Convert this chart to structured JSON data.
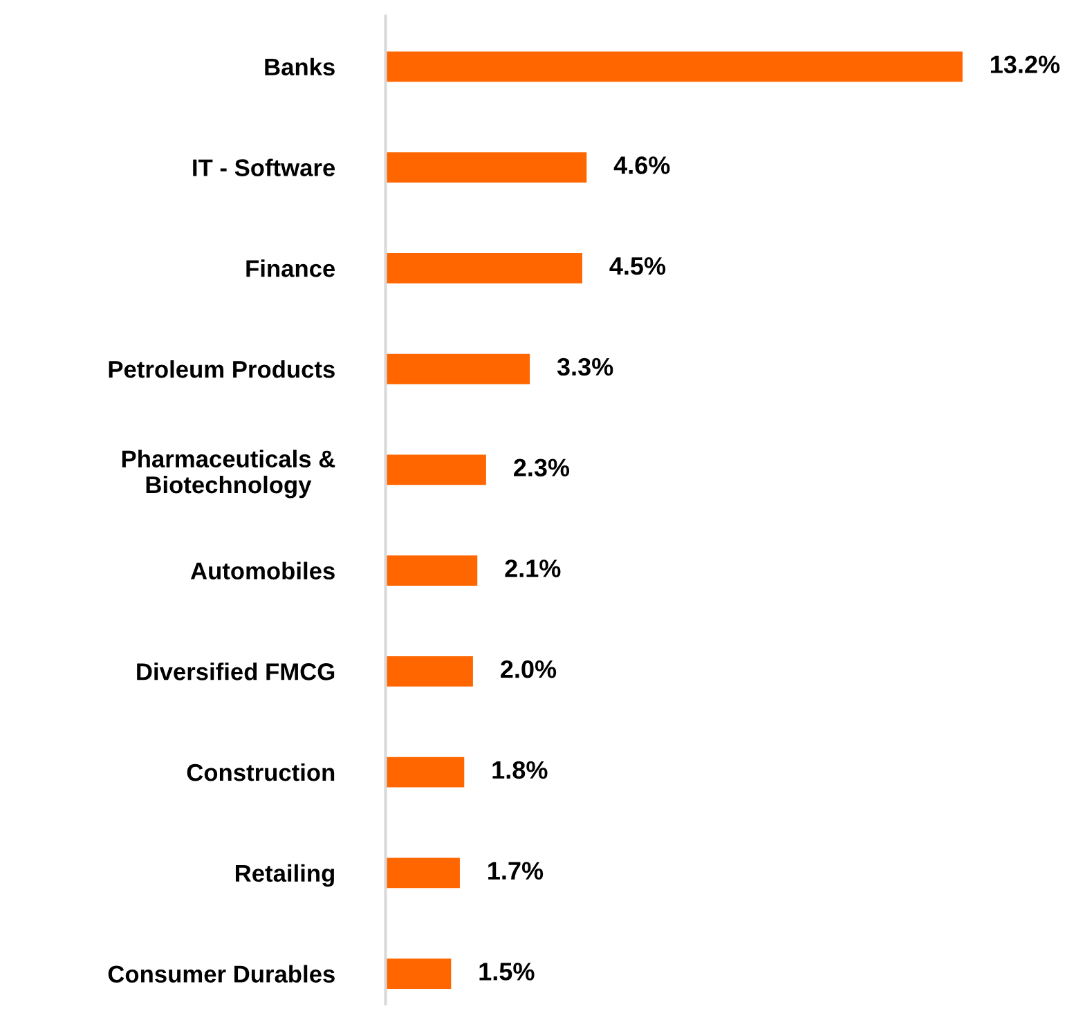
{
  "chart_data": {
    "type": "bar",
    "orientation": "horizontal",
    "categories": [
      "Banks",
      "IT - Software",
      "Finance",
      "Petroleum Products",
      "Pharmaceuticals &\nBiotechnology",
      "Automobiles",
      "Diversified FMCG",
      "Construction",
      "Retailing",
      "Consumer Durables"
    ],
    "values": [
      13.2,
      4.6,
      4.5,
      3.3,
      2.3,
      2.1,
      2.0,
      1.8,
      1.7,
      1.5
    ],
    "value_labels": [
      "13.2%",
      "4.6%",
      "4.5%",
      "3.3%",
      "2.3%",
      "2.1%",
      "2.0%",
      "1.8%",
      "1.7%",
      "1.5%"
    ],
    "color": "#ff6600",
    "tick_labels": "y",
    "grid": false,
    "legend": false
  }
}
